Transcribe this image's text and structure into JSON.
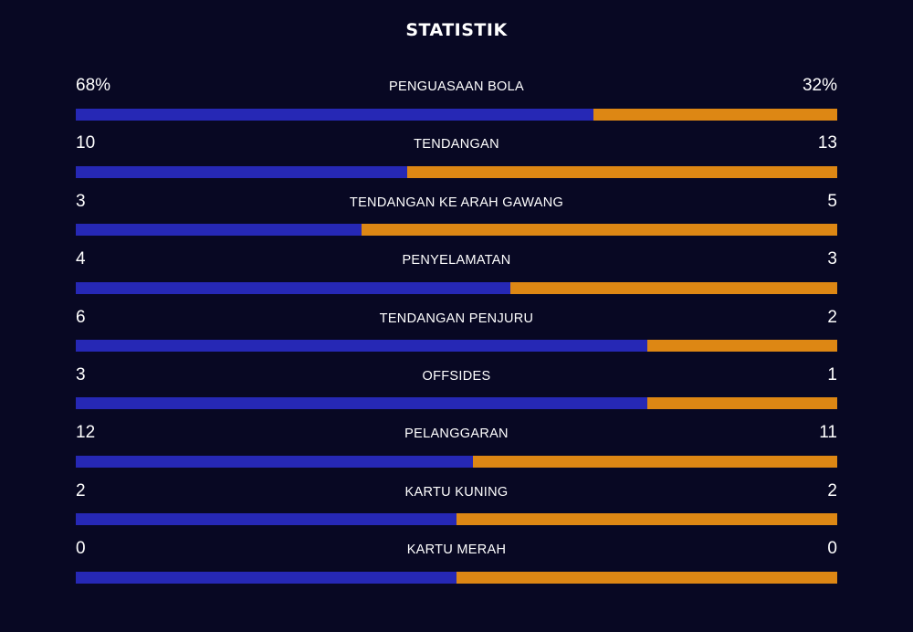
{
  "title": "STATISTIK",
  "colors": {
    "background": "#080823",
    "home_bar": "#2628b5",
    "away_bar": "#dd8714",
    "text": "#ffffff"
  },
  "stats": [
    {
      "label": "PENGUASAAN BOLA",
      "home": "68%",
      "away": "32%",
      "home_share": 0.68
    },
    {
      "label": "TENDANGAN",
      "home": "10",
      "away": "13",
      "home_share": 0.435
    },
    {
      "label": "TENDANGAN KE ARAH GAWANG",
      "home": "3",
      "away": "5",
      "home_share": 0.375
    },
    {
      "label": "PENYELAMATAN",
      "home": "4",
      "away": "3",
      "home_share": 0.571
    },
    {
      "label": "TENDANGAN PENJURU",
      "home": "6",
      "away": "2",
      "home_share": 0.75
    },
    {
      "label": "OFFSIDES",
      "home": "3",
      "away": "1",
      "home_share": 0.75
    },
    {
      "label": "PELANGGARAN",
      "home": "12",
      "away": "11",
      "home_share": 0.522
    },
    {
      "label": "KARTU KUNING",
      "home": "2",
      "away": "2",
      "home_share": 0.5
    },
    {
      "label": "KARTU MERAH",
      "home": "0",
      "away": "0",
      "home_share": 0.5
    }
  ]
}
